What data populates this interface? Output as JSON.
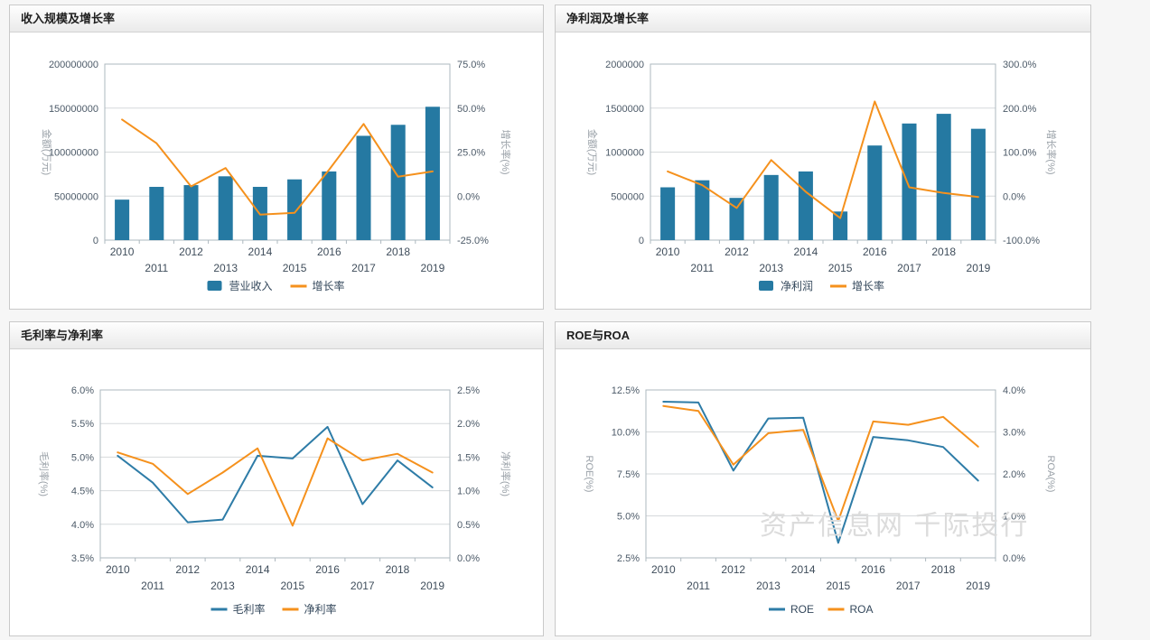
{
  "page": {
    "watermark": "资产信息网 千际投行"
  },
  "colors": {
    "bar_blue": "#2579a2",
    "line_blue": "#2e7ca7",
    "line_orange": "#f5911d"
  },
  "chart_data": [
    {
      "id": "revenue-growth",
      "type": "bar-line",
      "title": "收入规模及增长率",
      "categories": [
        "2010",
        "2011",
        "2012",
        "2013",
        "2014",
        "2015",
        "2016",
        "2017",
        "2018",
        "2019"
      ],
      "bar_series": {
        "name": "营业收入",
        "axis": "left",
        "color": "#2579a2",
        "values": [
          46000000,
          60500000,
          62500000,
          72500000,
          60500000,
          69000000,
          78000000,
          118500000,
          131000000,
          151500000
        ]
      },
      "line_series": [
        {
          "name": "增长率",
          "axis": "right",
          "color": "#f5911d",
          "values": [
            43.5,
            30,
            5.5,
            16,
            -10.5,
            -9.5,
            15,
            41,
            11,
            14
          ]
        }
      ],
      "left_axis": {
        "title": "金额(万元)",
        "min": 0,
        "max": 200000000,
        "ticks": [
          "0",
          "50000000",
          "100000000",
          "150000000",
          "200000000"
        ]
      },
      "right_axis": {
        "title": "增长率(%)",
        "min": -25,
        "max": 75,
        "ticks": [
          "-25.0%",
          "0.0%",
          "25.0%",
          "50.0%",
          "75.0%"
        ]
      },
      "legend_position": "bottom",
      "grid": true
    },
    {
      "id": "netprofit-growth",
      "type": "bar-line",
      "title": "净利润及增长率",
      "categories": [
        "2010",
        "2011",
        "2012",
        "2013",
        "2014",
        "2015",
        "2016",
        "2017",
        "2018",
        "2019"
      ],
      "bar_series": {
        "name": "净利润",
        "axis": "left",
        "color": "#2579a2",
        "values": [
          600000,
          680000,
          480000,
          740000,
          780000,
          325000,
          1075000,
          1325000,
          1435000,
          1265000
        ]
      },
      "line_series": [
        {
          "name": "增长率",
          "axis": "right",
          "color": "#f5911d",
          "values": [
            56,
            25,
            -27,
            82,
            10,
            -50,
            215,
            20,
            7,
            -2
          ]
        }
      ],
      "left_axis": {
        "title": "金额(万元)",
        "min": 0,
        "max": 2000000,
        "ticks": [
          "0",
          "500000",
          "1000000",
          "1500000",
          "2000000"
        ]
      },
      "right_axis": {
        "title": "增长率(%)",
        "min": -100,
        "max": 300,
        "ticks": [
          "-100.0%",
          "0.0%",
          "100.0%",
          "200.0%",
          "300.0%"
        ]
      },
      "legend_position": "bottom",
      "grid": true
    },
    {
      "id": "margin",
      "type": "line",
      "title": "毛利率与净利率",
      "categories": [
        "2010",
        "2011",
        "2012",
        "2013",
        "2014",
        "2015",
        "2016",
        "2017",
        "2018",
        "2019"
      ],
      "line_series": [
        {
          "name": "毛利率",
          "axis": "left",
          "color": "#2e7ca7",
          "values": [
            5.02,
            4.62,
            4.03,
            4.07,
            5.02,
            4.98,
            5.45,
            4.3,
            4.95,
            4.55
          ]
        },
        {
          "name": "净利率",
          "axis": "right",
          "color": "#f5911d",
          "values": [
            1.57,
            1.4,
            0.95,
            1.27,
            1.63,
            0.48,
            1.78,
            1.45,
            1.55,
            1.27
          ]
        }
      ],
      "left_axis": {
        "title": "毛利率(%)",
        "min": 3.5,
        "max": 6.0,
        "ticks": [
          "3.5%",
          "4.0%",
          "4.5%",
          "5.0%",
          "5.5%",
          "6.0%"
        ]
      },
      "right_axis": {
        "title": "净利率(%)",
        "min": 0.0,
        "max": 2.5,
        "ticks": [
          "0.0%",
          "0.5%",
          "1.0%",
          "1.5%",
          "2.0%",
          "2.5%"
        ]
      },
      "legend_position": "bottom",
      "grid": true
    },
    {
      "id": "roe-roa",
      "type": "line",
      "title": "ROE与ROA",
      "categories": [
        "2010",
        "2011",
        "2012",
        "2013",
        "2014",
        "2015",
        "2016",
        "2017",
        "2018",
        "2019"
      ],
      "line_series": [
        {
          "name": "ROE",
          "axis": "left",
          "color": "#2e7ca7",
          "values": [
            11.8,
            11.75,
            7.7,
            10.8,
            10.85,
            3.4,
            9.7,
            9.5,
            9.1,
            7.1
          ]
        },
        {
          "name": "ROA",
          "axis": "right",
          "color": "#f5911d",
          "values": [
            3.62,
            3.5,
            2.22,
            2.97,
            3.05,
            0.88,
            3.25,
            3.17,
            3.36,
            2.65
          ]
        }
      ],
      "left_axis": {
        "title": "ROE(%)",
        "min": 2.5,
        "max": 12.5,
        "ticks": [
          "2.5%",
          "5.0%",
          "7.5%",
          "10.0%",
          "12.5%"
        ]
      },
      "right_axis": {
        "title": "ROA(%)",
        "min": 0.0,
        "max": 4.0,
        "ticks": [
          "0.0%",
          "1.0%",
          "2.0%",
          "3.0%",
          "4.0%"
        ]
      },
      "legend_position": "bottom",
      "grid": true
    }
  ]
}
